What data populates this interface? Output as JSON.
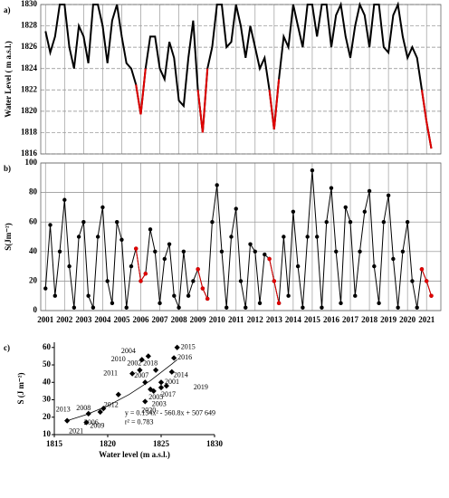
{
  "chart_data": [
    {
      "type": "line",
      "panel": "a)",
      "ylabel": "Water Level ( m a.s.l.)",
      "x": [
        2001,
        2001.25,
        2001.5,
        2001.75,
        2002,
        2002.25,
        2002.5,
        2002.75,
        2003,
        2003.25,
        2003.5,
        2003.75,
        2004,
        2004.25,
        2004.5,
        2004.75,
        2005,
        2005.25,
        2005.5,
        2005.75,
        2006,
        2006.25,
        2006.5,
        2006.75,
        2007,
        2007.25,
        2007.5,
        2007.75,
        2008,
        2008.25,
        2008.5,
        2008.75,
        2009,
        2009.25,
        2009.5,
        2009.75,
        2010,
        2010.25,
        2010.5,
        2010.75,
        2011,
        2011.25,
        2011.5,
        2011.75,
        2012,
        2012.25,
        2012.5,
        2012.75,
        2013,
        2013.25,
        2013.5,
        2013.75,
        2014,
        2014.25,
        2014.5,
        2014.75,
        2015,
        2015.25,
        2015.5,
        2015.75,
        2016,
        2016.25,
        2016.5,
        2016.75,
        2017,
        2017.25,
        2017.5,
        2017.75,
        2018,
        2018.25,
        2018.5,
        2018.75,
        2019,
        2019.25,
        2019.5,
        2019.75,
        2020,
        2020.25,
        2020.5,
        2020.75,
        2021,
        2021.25
      ],
      "xlim": [
        2000.75,
        2021.75
      ],
      "xticks": [
        2001,
        2002,
        2003,
        2004,
        2005,
        2006,
        2007,
        2008,
        2009,
        2010,
        2011,
        2012,
        2013,
        2014,
        2015,
        2016,
        2017,
        2018,
        2019,
        2020,
        2021
      ],
      "xtick_labels": false,
      "ylim": [
        1816,
        1830
      ],
      "yticks": [
        1816,
        1818,
        1820,
        1822,
        1824,
        1826,
        1828,
        1830
      ],
      "grid": true,
      "markers": false,
      "series": [
        {
          "color": "#000000",
          "values": [
            1827.5,
            1825.5,
            1827,
            1830,
            1830,
            1826,
            1824,
            1828,
            1827,
            1824.5,
            1830,
            1830,
            1828,
            1824.5,
            1828.5,
            1830,
            1827,
            1824.5,
            1824,
            1822.5,
            1819.7,
            1824,
            1827,
            1827,
            1824,
            1823,
            1826.5,
            1825,
            1821,
            1820.5,
            1825,
            1828.5,
            1822,
            1818,
            1824,
            1826,
            1830,
            1830,
            1826,
            1826.5,
            1830,
            1828,
            1825,
            1828,
            1826,
            1824,
            1825,
            1822,
            1818.3,
            1823,
            1827,
            1826,
            1830,
            1828,
            1826,
            1830,
            1830,
            1827,
            1830,
            1830,
            1826,
            1829,
            1830,
            1827,
            1825,
            1828,
            1830,
            1829,
            1826,
            1830,
            1830,
            1826,
            1825.5,
            1829,
            1830,
            1827,
            1825,
            1826,
            1825,
            1822,
            1819,
            1816.5
          ]
        },
        {
          "color": "#e00000",
          "values": [
            null,
            null,
            null,
            null,
            null,
            null,
            null,
            null,
            null,
            null,
            null,
            null,
            null,
            null,
            null,
            null,
            null,
            null,
            null,
            1822.5,
            1819.7,
            1824,
            null,
            null,
            null,
            null,
            null,
            null,
            null,
            null,
            null,
            null,
            1822,
            1818,
            1824,
            null,
            null,
            null,
            null,
            null,
            null,
            null,
            null,
            null,
            null,
            null,
            null,
            1822,
            1818.3,
            1823,
            null,
            null,
            null,
            null,
            null,
            null,
            null,
            null,
            null,
            null,
            null,
            null,
            null,
            null,
            null,
            null,
            null,
            null,
            null,
            null,
            null,
            null,
            null,
            null,
            null,
            null,
            null,
            null,
            null,
            1822,
            1819,
            1816.5
          ]
        }
      ]
    },
    {
      "type": "line",
      "panel": "b)",
      "ylabel": "S(Jm⁻²)",
      "x": [
        2001,
        2001.25,
        2001.5,
        2001.75,
        2002,
        2002.25,
        2002.5,
        2002.75,
        2003,
        2003.25,
        2003.5,
        2003.75,
        2004,
        2004.25,
        2004.5,
        2004.75,
        2005,
        2005.25,
        2005.5,
        2005.75,
        2006,
        2006.25,
        2006.5,
        2006.75,
        2007,
        2007.25,
        2007.5,
        2007.75,
        2008,
        2008.25,
        2008.5,
        2008.75,
        2009,
        2009.25,
        2009.5,
        2009.75,
        2010,
        2010.25,
        2010.5,
        2010.75,
        2011,
        2011.25,
        2011.5,
        2011.75,
        2012,
        2012.25,
        2012.5,
        2012.75,
        2013,
        2013.25,
        2013.5,
        2013.75,
        2014,
        2014.25,
        2014.5,
        2014.75,
        2015,
        2015.25,
        2015.5,
        2015.75,
        2016,
        2016.25,
        2016.5,
        2016.75,
        2017,
        2017.25,
        2017.5,
        2017.75,
        2018,
        2018.25,
        2018.5,
        2018.75,
        2019,
        2019.25,
        2019.5,
        2019.75,
        2020,
        2020.25,
        2020.5,
        2020.75,
        2021,
        2021.25
      ],
      "xlim": [
        2000.75,
        2021.75
      ],
      "xticks": [
        2001,
        2002,
        2003,
        2004,
        2005,
        2006,
        2007,
        2008,
        2009,
        2010,
        2011,
        2012,
        2013,
        2014,
        2015,
        2016,
        2017,
        2018,
        2019,
        2020,
        2021
      ],
      "xtick_labels": true,
      "ylim": [
        0,
        100
      ],
      "yticks": [
        0,
        20,
        40,
        60,
        80,
        100
      ],
      "grid": true,
      "markers": true,
      "series": [
        {
          "color": "#000000",
          "values": [
            15,
            58,
            10,
            40,
            75,
            30,
            2,
            50,
            60,
            10,
            2,
            50,
            70,
            20,
            5,
            60,
            48,
            2,
            30,
            42,
            20,
            25,
            55,
            40,
            5,
            35,
            45,
            10,
            2,
            40,
            10,
            20,
            28,
            15,
            8,
            60,
            85,
            40,
            2,
            50,
            69,
            20,
            2,
            45,
            40,
            5,
            38,
            35,
            20,
            5,
            50,
            10,
            67,
            30,
            2,
            50,
            95,
            50,
            2,
            60,
            83,
            40,
            5,
            70,
            60,
            10,
            40,
            67,
            81,
            30,
            5,
            60,
            78,
            35,
            2,
            40,
            60,
            20,
            2,
            28,
            20,
            10
          ]
        },
        {
          "color": "#e00000",
          "values": [
            null,
            null,
            null,
            null,
            null,
            null,
            null,
            null,
            null,
            null,
            null,
            null,
            null,
            null,
            null,
            null,
            null,
            null,
            null,
            42,
            20,
            25,
            null,
            null,
            null,
            null,
            null,
            null,
            null,
            null,
            null,
            null,
            28,
            15,
            8,
            null,
            null,
            null,
            null,
            null,
            null,
            null,
            null,
            null,
            null,
            null,
            null,
            35,
            20,
            5,
            null,
            null,
            null,
            null,
            null,
            null,
            null,
            null,
            null,
            null,
            null,
            null,
            null,
            null,
            null,
            null,
            null,
            null,
            null,
            null,
            null,
            null,
            null,
            null,
            null,
            null,
            null,
            null,
            null,
            28,
            20,
            10
          ]
        }
      ]
    },
    {
      "type": "scatter",
      "panel": "c)",
      "ylabel": "S (J m⁻²)",
      "xlabel": "Water level (m a.s.l.)",
      "x": [
        1816.2,
        1818,
        1818.2,
        1819.3,
        1819.6,
        1821,
        1822.3,
        1823.2,
        1823.8,
        1823,
        1824.5,
        1823.5,
        1824,
        1824.3,
        1823.5,
        1825,
        1825,
        1825.5,
        1826,
        1826.2,
        1826.5
      ],
      "values": [
        18,
        17,
        22,
        23,
        25,
        33,
        45,
        53,
        55,
        47,
        47,
        40,
        36,
        35,
        29,
        37,
        40,
        38,
        46,
        54,
        60
      ],
      "labels": [
        "2021",
        "2009",
        "2013",
        "2006",
        "2008",
        "2012",
        "2011",
        "2010",
        "2004",
        "2002",
        "2018",
        "2007",
        "2005",
        "2003",
        "2020",
        "2017",
        "2001",
        "2019",
        "2014",
        "2016",
        "2015"
      ],
      "color": "#000000",
      "trend": {
        "x": [
          1816.2,
          1818,
          1820,
          1822,
          1824,
          1826,
          1826.5
        ],
        "values": [
          18,
          21.5,
          26.5,
          33,
          41,
          50.5,
          53
        ]
      },
      "annotations": [
        "y = 0.154x² - 560.8x + 507 649",
        "r² = 0.783"
      ],
      "xlim": [
        1815,
        1830
      ],
      "xticks": [
        1815,
        1820,
        1825,
        1830
      ],
      "ylim": [
        10,
        63
      ],
      "yticks": [
        10,
        20,
        30,
        40,
        50,
        60
      ],
      "grid": false
    }
  ]
}
